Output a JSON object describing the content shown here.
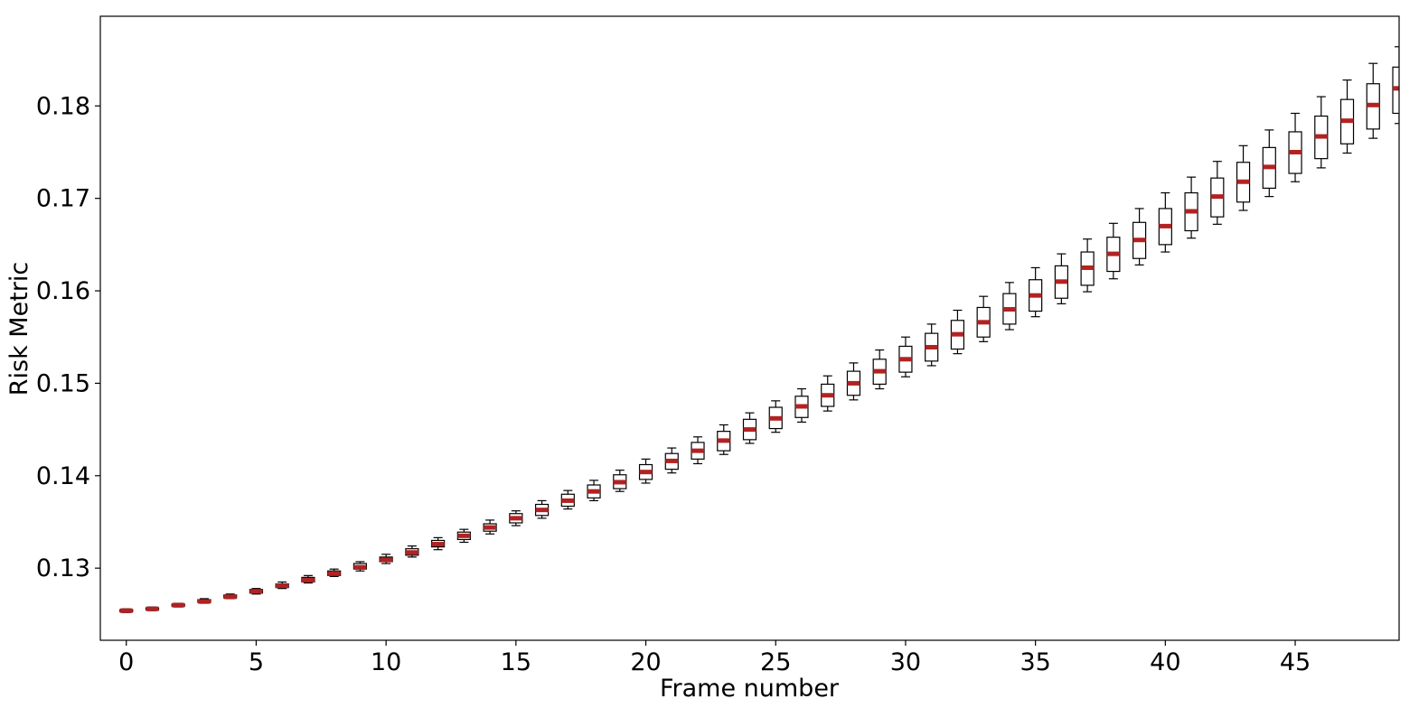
{
  "chart_data": {
    "type": "box",
    "title": "",
    "xlabel": "Frame number",
    "ylabel": "Risk Metric",
    "xlim": [
      -1,
      49
    ],
    "ylim": [
      0.1222,
      0.1897
    ],
    "xticks": [
      "0",
      "5",
      "10",
      "15",
      "20",
      "25",
      "30",
      "35",
      "40",
      "45"
    ],
    "yticks": [
      "0.13",
      "0.14",
      "0.15",
      "0.16",
      "0.17",
      "0.18"
    ],
    "median_color": "#b22222",
    "box_color": "#000000",
    "x": [
      0,
      1,
      2,
      3,
      4,
      5,
      6,
      7,
      8,
      9,
      10,
      11,
      12,
      13,
      14,
      15,
      16,
      17,
      18,
      19,
      20,
      21,
      22,
      23,
      24,
      25,
      26,
      27,
      28,
      29,
      30,
      31,
      32,
      33,
      34,
      35,
      36,
      37,
      38,
      39,
      40,
      41,
      42,
      43,
      44,
      45,
      46,
      47,
      48,
      49
    ],
    "median": [
      0.1254,
      0.1256,
      0.126,
      0.1264,
      0.1269,
      0.1275,
      0.1281,
      0.1287,
      0.1294,
      0.1301,
      0.1309,
      0.1317,
      0.1326,
      0.1335,
      0.1344,
      0.1354,
      0.1363,
      0.1373,
      0.1383,
      0.1393,
      0.1404,
      0.1416,
      0.1427,
      0.1438,
      0.145,
      0.1462,
      0.1475,
      0.1487,
      0.15,
      0.1513,
      0.1526,
      0.1539,
      0.1553,
      0.1566,
      0.158,
      0.1595,
      0.161,
      0.1625,
      0.164,
      0.1655,
      0.167,
      0.1686,
      0.1702,
      0.1718,
      0.1734,
      0.175,
      0.1767,
      0.1784,
      0.1801,
      0.1819
    ],
    "q1": [
      0.1253,
      0.1255,
      0.1259,
      0.1263,
      0.1268,
      0.1273,
      0.1279,
      0.1285,
      0.1292,
      0.1299,
      0.1307,
      0.1314,
      0.1323,
      0.1331,
      0.134,
      0.1349,
      0.1357,
      0.1367,
      0.1376,
      0.1386,
      0.1396,
      0.1407,
      0.1418,
      0.1427,
      0.1439,
      0.1451,
      0.1463,
      0.1475,
      0.1487,
      0.1499,
      0.1512,
      0.1524,
      0.1537,
      0.155,
      0.1564,
      0.1578,
      0.1592,
      0.1606,
      0.1621,
      0.1635,
      0.165,
      0.1665,
      0.168,
      0.1696,
      0.1711,
      0.1727,
      0.1743,
      0.1759,
      0.1775,
      0.1792
    ],
    "q3": [
      0.1255,
      0.1257,
      0.1261,
      0.1266,
      0.1271,
      0.1277,
      0.1283,
      0.129,
      0.1297,
      0.1305,
      0.1312,
      0.1321,
      0.133,
      0.1339,
      0.1348,
      0.1359,
      0.1369,
      0.138,
      0.139,
      0.1401,
      0.1412,
      0.1424,
      0.1436,
      0.1448,
      0.1461,
      0.1474,
      0.1486,
      0.1499,
      0.1513,
      0.1526,
      0.154,
      0.1554,
      0.1568,
      0.1582,
      0.1597,
      0.1612,
      0.1627,
      0.1642,
      0.1658,
      0.1674,
      0.1689,
      0.1706,
      0.1722,
      0.1739,
      0.1755,
      0.1772,
      0.1789,
      0.1807,
      0.1824,
      0.1842
    ],
    "whisker_low": [
      0.1252,
      0.1254,
      0.1258,
      0.1262,
      0.1267,
      0.1272,
      0.1278,
      0.1284,
      0.1291,
      0.1297,
      0.1305,
      0.1312,
      0.132,
      0.1328,
      0.1337,
      0.1346,
      0.1354,
      0.1364,
      0.1373,
      0.1383,
      0.1392,
      0.1403,
      0.1413,
      0.1423,
      0.1435,
      0.1447,
      0.1458,
      0.147,
      0.1482,
      0.1494,
      0.1507,
      0.1519,
      0.1532,
      0.1545,
      0.1558,
      0.1572,
      0.1586,
      0.1599,
      0.1613,
      0.1628,
      0.1642,
      0.1657,
      0.1672,
      0.1687,
      0.1702,
      0.1718,
      0.1733,
      0.1749,
      0.1765,
      0.1781
    ],
    "whisker_high": [
      0.1256,
      0.1258,
      0.1262,
      0.1267,
      0.1272,
      0.1278,
      0.1285,
      0.1292,
      0.1299,
      0.1307,
      0.1315,
      0.1324,
      0.1333,
      0.1342,
      0.1352,
      0.1362,
      0.1373,
      0.1384,
      0.1395,
      0.1406,
      0.1418,
      0.143,
      0.1442,
      0.1455,
      0.1468,
      0.1481,
      0.1494,
      0.1508,
      0.1522,
      0.1536,
      0.155,
      0.1564,
      0.1579,
      0.1594,
      0.1609,
      0.1625,
      0.164,
      0.1656,
      0.1673,
      0.1689,
      0.1706,
      0.1723,
      0.174,
      0.1757,
      0.1774,
      0.1792,
      0.181,
      0.1828,
      0.1846,
      0.1864
    ]
  }
}
